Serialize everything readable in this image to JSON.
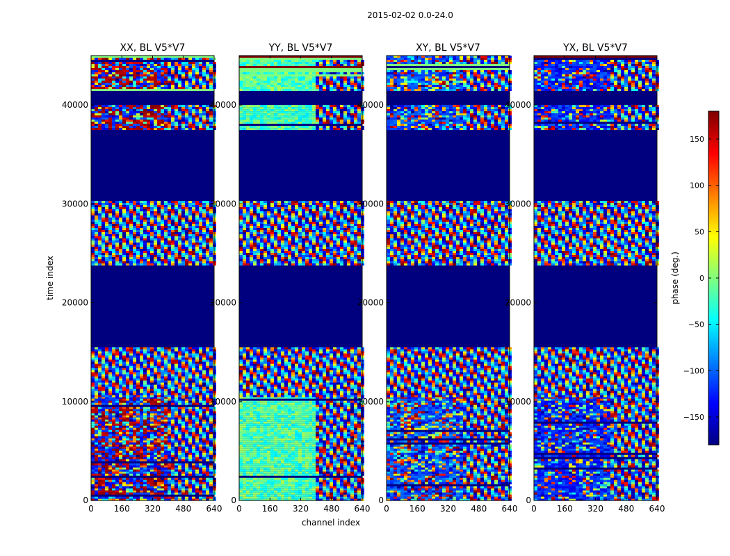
{
  "chart_data": {
    "type": "heatmap",
    "title": "2015-02-02 0.0-24.0",
    "xlabel": "channel index",
    "ylabel": "time index",
    "xlim": [
      0,
      640
    ],
    "ylim": [
      0,
      45000
    ],
    "x_ticks": [
      0,
      160,
      320,
      480,
      640
    ],
    "y_ticks": [
      0,
      10000,
      20000,
      30000,
      40000
    ],
    "panels": [
      {
        "id": "xx",
        "title": "XX, BL V5*V7",
        "style": "xx"
      },
      {
        "id": "yy",
        "title": "YY, BL V5*V7",
        "style": "yy"
      },
      {
        "id": "xy",
        "title": "XY, BL V5*V7",
        "style": "xy"
      },
      {
        "id": "yx",
        "title": "YX, BL V5*V7",
        "style": "yx"
      }
    ],
    "time_bands": [
      {
        "from": 0,
        "to": 10500,
        "kind": "noisy"
      },
      {
        "from": 10500,
        "to": 15500,
        "kind": "fringes"
      },
      {
        "from": 15500,
        "to": 23800,
        "kind": "flagged"
      },
      {
        "from": 23800,
        "to": 30300,
        "kind": "fringes"
      },
      {
        "from": 30300,
        "to": 37600,
        "kind": "flagged"
      },
      {
        "from": 37600,
        "to": 40000,
        "kind": "noisy"
      },
      {
        "from": 40000,
        "to": 41600,
        "kind": "flagged"
      },
      {
        "from": 41600,
        "to": 45000,
        "kind": "mixed"
      }
    ],
    "colorbar": {
      "label": "phase (deg.)",
      "range": [
        -180,
        180
      ],
      "ticks": [
        -150,
        -100,
        -50,
        0,
        50,
        100,
        150
      ],
      "tick_labels": [
        "−150",
        "−100",
        "−50",
        "0",
        "50",
        "100",
        "150"
      ],
      "colormap": [
        "#00007f",
        "#0000ff",
        "#007fff",
        "#00ffff",
        "#7fff7f",
        "#ffff00",
        "#ff7f00",
        "#ff0000",
        "#7f0000"
      ]
    }
  }
}
